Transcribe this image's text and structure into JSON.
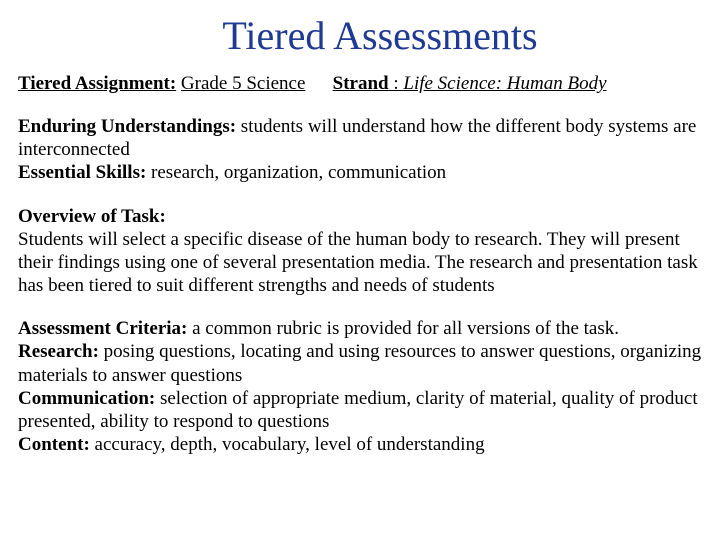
{
  "title": {
    "text": "Tiered Assessments",
    "color": "#1f3a93",
    "fontsize": 40
  },
  "header": {
    "assignment_label": "Tiered Assignment:",
    "assignment_value": "Grade 5 Science",
    "strand_label": "Strand",
    "strand_value": "Life Science: Human Body"
  },
  "section1": {
    "eu_label": "Enduring Understandings:",
    "eu_text": " students will understand how the different body systems are interconnected",
    "es_label": "Essential Skills:",
    "es_text": " research, organization, communication"
  },
  "section2": {
    "ov_label": "Overview of Task:",
    "ov_text": "Students will select a specific disease of the human body to research.  They will present their findings using one of several presentation media.  The research and presentation task has been tiered to suit different strengths and needs of students"
  },
  "section3": {
    "ac_label": "Assessment Criteria:",
    "ac_text": " a common rubric is provided for all versions of the task.",
    "re_label": "Research:",
    "re_text": " posing questions, locating and using resources to answer questions, organizing materials to answer questions",
    "co_label": "Communication:",
    "co_text": " selection of appropriate medium, clarity of material, quality of product presented, ability to respond to questions",
    "ct_label": "Content:",
    "ct_text": " accuracy, depth, vocabulary, level of understanding"
  },
  "colors": {
    "title": "#1f3a93",
    "body_text": "#000000",
    "background": "#ffffff"
  },
  "typography": {
    "title_fontsize": 40,
    "body_fontsize": 19,
    "font_family": "Times New Roman"
  }
}
